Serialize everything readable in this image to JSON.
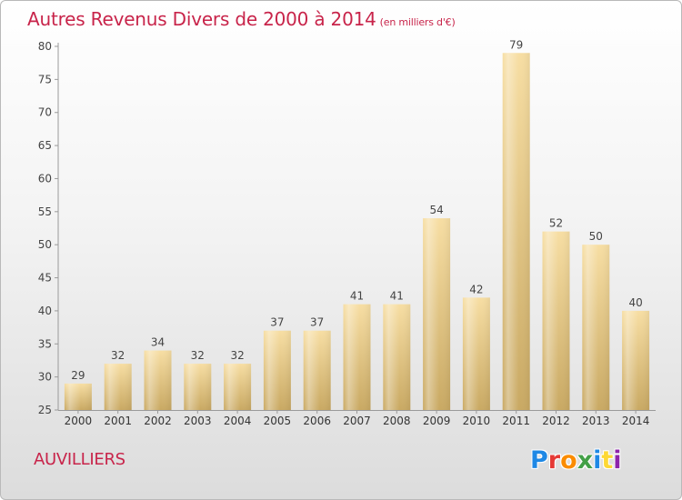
{
  "title": "Autres Revenus Divers de 2000 à 2014",
  "subtitle": "(en milliers d'€)",
  "commune": "AUVILLIERS",
  "logo": {
    "text": "Proxiti",
    "colors": [
      "#1e88e5",
      "#e53935",
      "#fb8c00",
      "#43a047",
      "#1e88e5",
      "#fdd835",
      "#8e24aa"
    ]
  },
  "colors": {
    "accent": "#c8244a",
    "bar_light": "#f6dca0",
    "bar_dark": "#cfae68"
  },
  "chart_data": {
    "type": "bar",
    "categories": [
      "2000",
      "2001",
      "2002",
      "2003",
      "2004",
      "2005",
      "2006",
      "2007",
      "2008",
      "2009",
      "2010",
      "2011",
      "2012",
      "2013",
      "2014"
    ],
    "values": [
      29,
      32,
      34,
      32,
      32,
      37,
      37,
      41,
      41,
      54,
      42,
      79,
      52,
      50,
      40
    ],
    "ylim": [
      25,
      80
    ],
    "yticks": [
      25,
      30,
      35,
      40,
      45,
      50,
      55,
      60,
      65,
      70,
      75,
      80
    ],
    "grid": false
  }
}
